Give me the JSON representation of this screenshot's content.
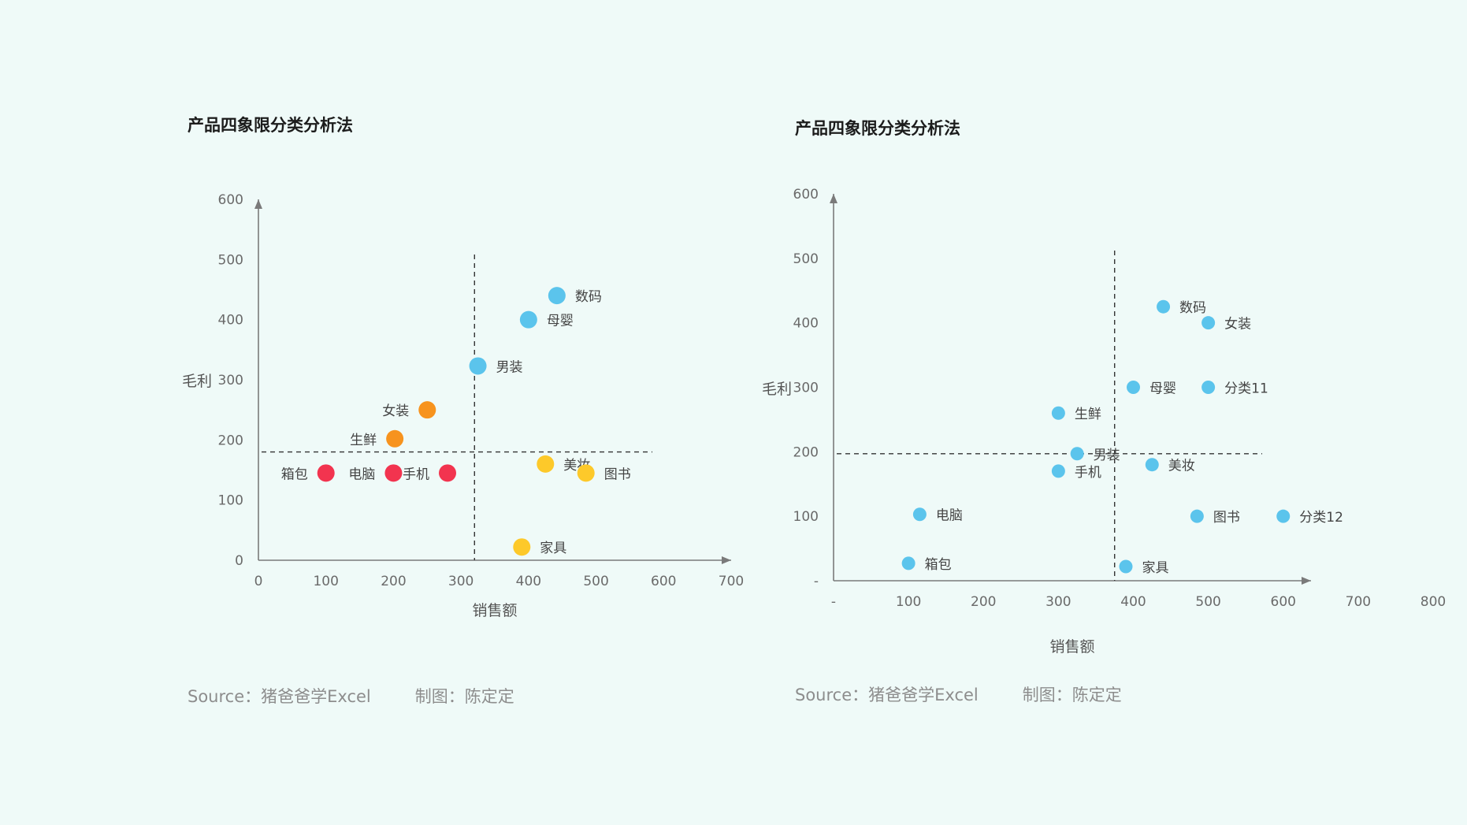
{
  "background": "#effaf8",
  "charts": [
    {
      "title": "产品四象限分类分析法",
      "source": "Source：猪爸爸学Excel",
      "credit": "制图：陈定定"
    },
    {
      "title": "产品四象限分类分析法",
      "source": "Source：猪爸爸学Excel",
      "credit": "制图：陈定定"
    }
  ],
  "chart_data": [
    {
      "type": "scatter",
      "title": "产品四象限分类分析法",
      "xlabel": "销售额",
      "ylabel": "毛利",
      "xlim": [
        0,
        700
      ],
      "ylim": [
        0,
        600
      ],
      "xticks": [
        "0",
        "100",
        "200",
        "300",
        "400",
        "500",
        "600",
        "700"
      ],
      "yticks": [
        "0",
        "100",
        "200",
        "300",
        "400",
        "500",
        "600"
      ],
      "grid": false,
      "quadrant_lines": {
        "x": 320,
        "y": 180
      },
      "colors": {
        "high_x_high_y": "#5bc4ec",
        "low_x_high_y": "#f7931e",
        "low_x_low_y": "#f2344f",
        "high_x_low_y": "#fdc92a"
      },
      "points": [
        {
          "label": "数码",
          "x": 442,
          "y": 440,
          "color": "#5bc4ec"
        },
        {
          "label": "母婴",
          "x": 400,
          "y": 400,
          "color": "#5bc4ec"
        },
        {
          "label": "男装",
          "x": 325,
          "y": 323,
          "color": "#5bc4ec"
        },
        {
          "label": "女装",
          "x": 250,
          "y": 250,
          "color": "#f7931e"
        },
        {
          "label": "生鲜",
          "x": 202,
          "y": 202,
          "color": "#f7931e"
        },
        {
          "label": "箱包",
          "x": 100,
          "y": 145,
          "color": "#f2344f"
        },
        {
          "label": "电脑",
          "x": 200,
          "y": 145,
          "color": "#f2344f"
        },
        {
          "label": "手机",
          "x": 280,
          "y": 145,
          "color": "#f2344f"
        },
        {
          "label": "美妆",
          "x": 425,
          "y": 160,
          "color": "#fdc92a"
        },
        {
          "label": "图书",
          "x": 485,
          "y": 145,
          "color": "#fdc92a"
        },
        {
          "label": "家具",
          "x": 390,
          "y": 22,
          "color": "#fdc92a"
        }
      ]
    },
    {
      "type": "scatter",
      "title": "产品四象限分类分析法",
      "xlabel": "销售额",
      "ylabel": "毛利",
      "xlim": [
        0,
        800
      ],
      "ylim": [
        0,
        600
      ],
      "xticks": [
        "-",
        "100",
        "200",
        "300",
        "400",
        "500",
        "600",
        "700",
        "800"
      ],
      "yticks": [
        "-",
        "100",
        "200",
        "300",
        "400",
        "500",
        "600"
      ],
      "grid": false,
      "quadrant_lines": {
        "x": 375,
        "y": 197
      },
      "colors": {
        "point": "#5bc4ec"
      },
      "points": [
        {
          "label": "数码",
          "x": 440,
          "y": 425,
          "color": "#5bc4ec"
        },
        {
          "label": "女装",
          "x": 500,
          "y": 400,
          "color": "#5bc4ec"
        },
        {
          "label": "母婴",
          "x": 400,
          "y": 300,
          "color": "#5bc4ec"
        },
        {
          "label": "分类11",
          "x": 500,
          "y": 300,
          "color": "#5bc4ec"
        },
        {
          "label": "生鲜",
          "x": 300,
          "y": 260,
          "color": "#5bc4ec"
        },
        {
          "label": "男装",
          "x": 325,
          "y": 197,
          "color": "#5bc4ec"
        },
        {
          "label": "美妆",
          "x": 425,
          "y": 180,
          "color": "#5bc4ec"
        },
        {
          "label": "手机",
          "x": 300,
          "y": 170,
          "color": "#5bc4ec"
        },
        {
          "label": "电脑",
          "x": 115,
          "y": 103,
          "color": "#5bc4ec"
        },
        {
          "label": "图书",
          "x": 485,
          "y": 100,
          "color": "#5bc4ec"
        },
        {
          "label": "分类12",
          "x": 600,
          "y": 100,
          "color": "#5bc4ec"
        },
        {
          "label": "箱包",
          "x": 100,
          "y": 27,
          "color": "#5bc4ec"
        },
        {
          "label": "家具",
          "x": 390,
          "y": 22,
          "color": "#5bc4ec"
        }
      ]
    }
  ]
}
